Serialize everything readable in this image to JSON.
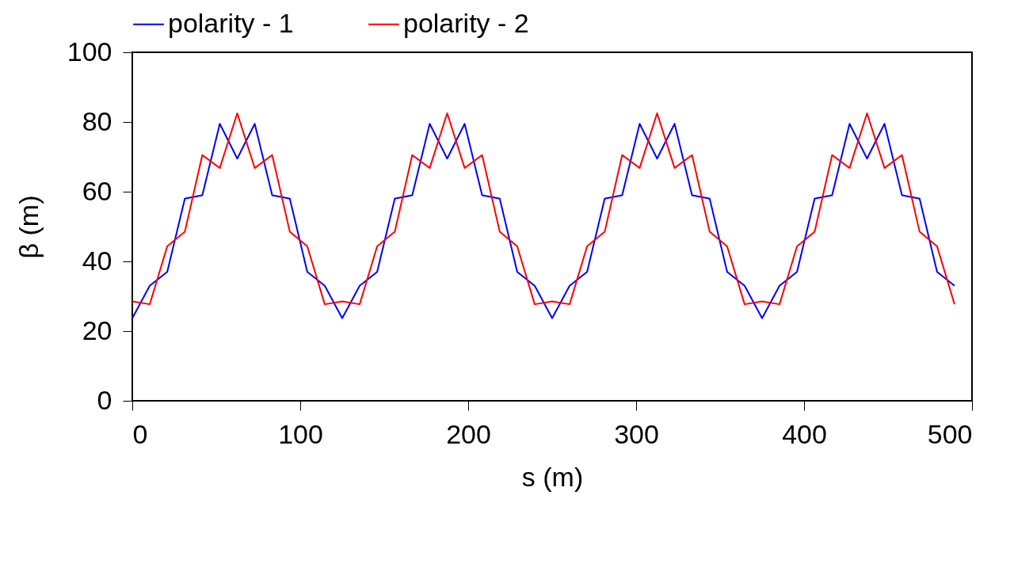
{
  "chart_data": {
    "type": "line",
    "xlabel": "s   (m)",
    "ylabel": "β   (m)",
    "x": [
      0,
      10.4,
      20.8,
      31.3,
      41.7,
      52.1,
      62.5,
      72.9,
      83.3,
      93.8,
      104.2,
      114.6,
      125,
      135.4,
      145.8,
      156.3,
      166.7,
      177.1,
      187.5,
      197.9,
      208.3,
      218.8,
      229.2,
      239.6,
      250,
      260.4,
      270.8,
      281.3,
      291.7,
      302.1,
      312.5,
      322.9,
      333.3,
      343.8,
      354.2,
      364.6,
      375,
      385.4,
      395.8,
      406.3,
      416.7,
      427.1,
      437.5,
      447.9,
      458.3,
      468.8,
      479.2,
      489.6
    ],
    "series": [
      {
        "name": "polarity - 1",
        "color": "#0000ff",
        "values": [
          23.7,
          33,
          37,
          58,
          59,
          79.5,
          69.5,
          79.5,
          59,
          58,
          37,
          33,
          23.7,
          33,
          37,
          58,
          59,
          79.5,
          69.5,
          79.5,
          59,
          58,
          37,
          33,
          23.7,
          33,
          37,
          58,
          59,
          79.5,
          69.5,
          79.5,
          59,
          58,
          37,
          33,
          23.7,
          33,
          37,
          58,
          59,
          79.5,
          69.5,
          79.5,
          59,
          58,
          37,
          33
        ]
      },
      {
        "name": "polarity - 2",
        "color": "#ff0000",
        "values": [
          28.5,
          27.7,
          44.3,
          48.5,
          70.5,
          66.8,
          82.5,
          66.8,
          70.5,
          48.5,
          44.3,
          27.7,
          28.5,
          27.7,
          44.3,
          48.5,
          70.5,
          66.8,
          82.5,
          66.8,
          70.5,
          48.5,
          44.3,
          27.7,
          28.5,
          27.7,
          44.3,
          48.5,
          70.5,
          66.8,
          82.5,
          66.8,
          70.5,
          48.5,
          44.3,
          27.7,
          28.5,
          27.7,
          44.3,
          48.5,
          70.5,
          66.8,
          82.5,
          66.8,
          70.5,
          48.5,
          44.3,
          27.7
        ]
      }
    ],
    "xlim": [
      0,
      500
    ],
    "xticks": [
      0,
      100,
      200,
      300,
      400,
      500
    ],
    "ylim": [
      0,
      100
    ],
    "yticks": [
      0,
      20,
      40,
      60,
      80,
      100
    ],
    "legend": "top",
    "grid": false,
    "marker": "none",
    "line_style": "solid"
  }
}
